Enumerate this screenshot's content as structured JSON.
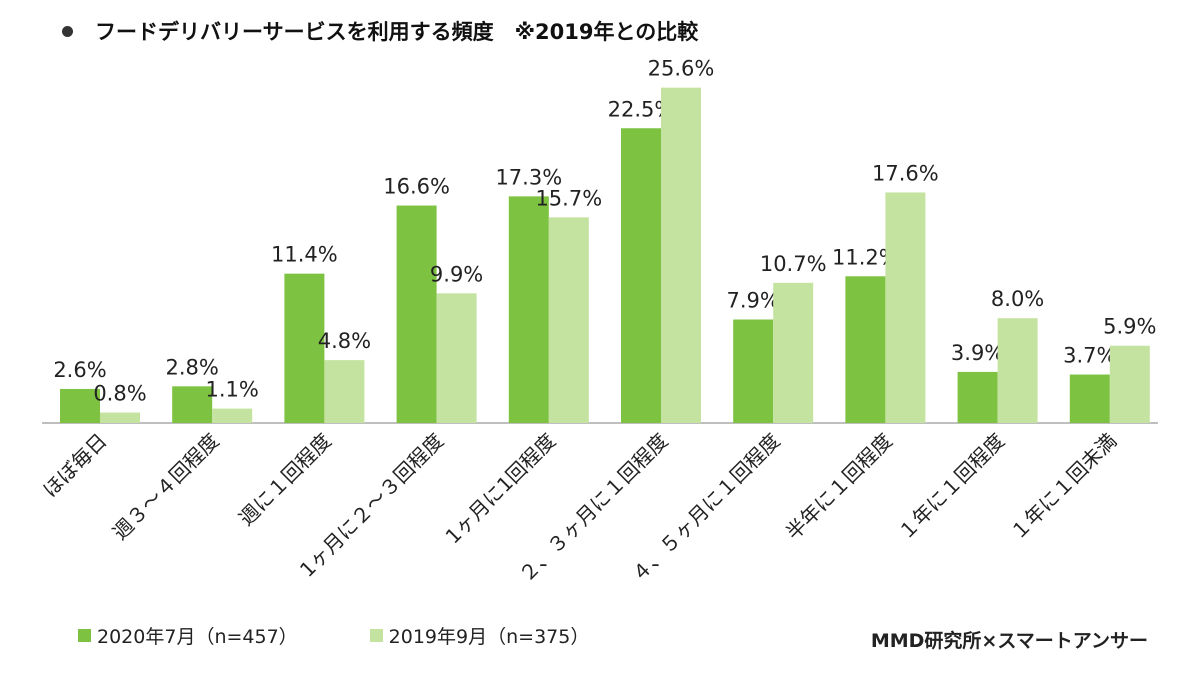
{
  "colors": {
    "series_2020": "#7dc241",
    "series_2019": "#c5e3a0",
    "axis": "#bfbfbf",
    "text": "#222222"
  },
  "title": "フードデリバリーサービスを利用する頻度　※2019年との比較",
  "credit": "MMD研究所×スマートアンサー",
  "chart_data": {
    "type": "bar",
    "categories": [
      "ほぼ毎日",
      "週３～４回程度",
      "週に１回程度",
      "1ヶ月に２～３回程度",
      "1ヶ月に1回程度",
      "２、３ヶ月に１回程度",
      "４、５ヶ月に１回程度",
      "半年に１回程度",
      "１年に１回程度",
      "１年に１回未満"
    ],
    "series": [
      {
        "name": "2020年7月（n=457）",
        "values": [
          2.6,
          2.8,
          11.4,
          16.6,
          17.3,
          22.5,
          7.9,
          11.2,
          3.9,
          3.7
        ],
        "labels": [
          "2.6%",
          "2.8%",
          "11.4%",
          "16.6%",
          "17.3%",
          "22.5%",
          "7.9%",
          "11.2%",
          "3.9%",
          "3.7%"
        ]
      },
      {
        "name": "2019年9月（n=375）",
        "values": [
          0.8,
          1.1,
          4.8,
          9.9,
          15.7,
          25.6,
          10.7,
          17.6,
          8.0,
          5.9
        ],
        "labels": [
          "0.8%",
          "1.1%",
          "4.8%",
          "9.9%",
          "15.7%",
          "25.6%",
          "10.7%",
          "17.6%",
          "8.0%",
          "5.9%"
        ]
      }
    ],
    "ylim": [
      0,
      26
    ],
    "grid": false,
    "legend_position": "bottom-left"
  }
}
